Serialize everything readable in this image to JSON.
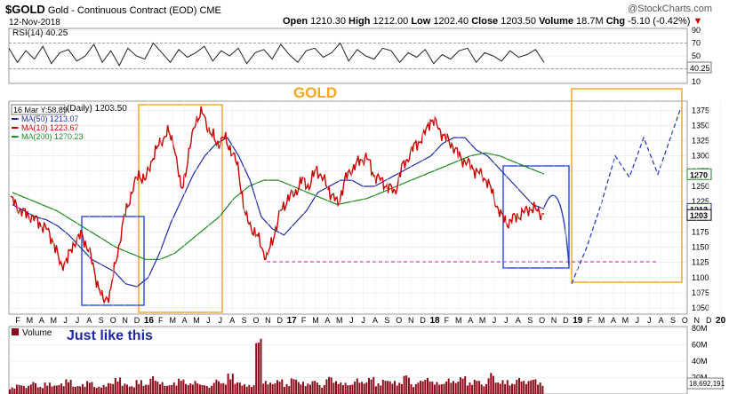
{
  "header": {
    "symbol": "$GOLD",
    "name": "Gold - Continuous Contract (EOD)",
    "exchange": "CME",
    "date": "12-Nov-2018",
    "watermark": "@StockCharts.com",
    "ohlc": [
      {
        "label": "Open",
        "value": "1210.30"
      },
      {
        "label": "High",
        "value": "1212.00"
      },
      {
        "label": "Low",
        "value": "1202.40"
      },
      {
        "label": "Close",
        "value": "1203.50"
      },
      {
        "label": "Volume",
        "value": "18.7M"
      },
      {
        "label": "Chg",
        "value": "-5.10 (-0.42%)"
      }
    ],
    "chg_arrow": "▼"
  },
  "annotations": {
    "gold_label": "GOLD",
    "just_like_this": "Just like this",
    "cursor_info": "16 Mar Y:58.89"
  },
  "colors": {
    "price": "#cc0000",
    "ma50": "#1a2aa8",
    "ma200": "#1a8a1a",
    "rsi": "#222222",
    "box_orange": "#f5a623",
    "box_blue": "#3355dd",
    "support_line": "#e040c0",
    "forecast": "#2b3fbf",
    "volume": "#8b0a1a",
    "gold_label": "#f5a623",
    "just_like_this": "#1a2aa8"
  },
  "chart_data": [
    {
      "type": "line",
      "panel": "rsi",
      "title": "RSI(14)",
      "current_value": "40.25",
      "ylim": [
        10,
        90
      ],
      "yticks": [
        "90",
        "70",
        "50",
        "30",
        "10"
      ],
      "reference_lines": [
        70,
        30
      ],
      "series": [
        {
          "values": [
            62,
            40,
            58,
            45,
            65,
            38,
            55,
            60,
            42,
            50,
            68,
            40,
            58,
            35,
            62,
            50,
            45,
            70,
            55,
            40,
            60,
            48,
            55,
            65,
            42,
            58,
            50,
            62,
            38,
            55,
            60,
            45,
            68,
            52,
            40,
            58,
            62,
            48,
            55,
            70,
            42,
            60,
            50,
            45,
            62,
            58,
            40,
            55,
            48,
            60,
            38,
            52,
            45,
            58,
            62,
            40,
            55,
            50,
            42,
            58,
            48,
            52,
            60,
            40
          ]
        }
      ]
    },
    {
      "type": "line",
      "panel": "price",
      "title": "GOLD",
      "legend": [
        {
          "name": "(Daily) 1203.50",
          "color": "#cc0000"
        },
        {
          "name": "MA(50) 1213.07",
          "color": "#1a2aa8"
        },
        {
          "name": "MA(10) 1223.67",
          "color": "#cc0000"
        },
        {
          "name": "MA(200) 1270.23",
          "color": "#1a8a1a"
        }
      ],
      "ylim": [
        1040,
        1390
      ],
      "yticks": [
        1050,
        1075,
        1100,
        1125,
        1150,
        1175,
        1200,
        1225,
        1250,
        1275,
        1300,
        1325,
        1350,
        1375
      ],
      "price_tags": [
        "1270",
        "1213",
        "1203"
      ],
      "x_ticks": [
        "F",
        "M",
        "A",
        "M",
        "J",
        "J",
        "A",
        "S",
        "O",
        "N",
        "D",
        "16",
        "F",
        "M",
        "A",
        "M",
        "J",
        "J",
        "A",
        "S",
        "O",
        "N",
        "D",
        "17",
        "F",
        "M",
        "A",
        "M",
        "J",
        "J",
        "A",
        "S",
        "O",
        "N",
        "D",
        "18",
        "F",
        "M",
        "A",
        "M",
        "J",
        "J",
        "A",
        "S",
        "O",
        "N",
        "D",
        "19",
        "F",
        "M",
        "A",
        "M",
        "J",
        "J",
        "A",
        "S",
        "O",
        "N",
        "D",
        "20"
      ],
      "x_labels": [
        "2015-02",
        "2015-03",
        "2015-04",
        "2015-05",
        "2015-06",
        "2015-07",
        "2015-08",
        "2015-09",
        "2015-10",
        "2015-11",
        "2015-12",
        "2016-01",
        "2016-02",
        "2016-03",
        "2016-04",
        "2016-05",
        "2016-06",
        "2016-07",
        "2016-08",
        "2016-09",
        "2016-10",
        "2016-11",
        "2016-12",
        "2017-01",
        "2017-02",
        "2017-03",
        "2017-04",
        "2017-05",
        "2017-06",
        "2017-07",
        "2017-08",
        "2017-09",
        "2017-10",
        "2017-11",
        "2017-12",
        "2018-01",
        "2018-02",
        "2018-03",
        "2018-04",
        "2018-05",
        "2018-06",
        "2018-07",
        "2018-08",
        "2018-09",
        "2018-10",
        "2018-11"
      ],
      "series": [
        {
          "name": "Price",
          "values": [
            1230,
            1215,
            1205,
            1200,
            1190,
            1180,
            1160,
            1120,
            1130,
            1160,
            1170,
            1145,
            1100,
            1060,
            1075,
            1140,
            1200,
            1240,
            1270,
            1260,
            1300,
            1320,
            1340,
            1320,
            1240,
            1300,
            1360,
            1370,
            1340,
            1320,
            1330,
            1310,
            1280,
            1200,
            1180,
            1160,
            1130,
            1170,
            1210,
            1230,
            1240,
            1260,
            1250,
            1280,
            1260,
            1240,
            1220,
            1260,
            1280,
            1290,
            1300,
            1270,
            1260,
            1250,
            1240,
            1280,
            1300,
            1320,
            1330,
            1360,
            1350,
            1330,
            1320,
            1300,
            1290,
            1280,
            1270,
            1260,
            1230,
            1200,
            1190,
            1200,
            1205,
            1215,
            1210,
            1203.5
          ]
        },
        {
          "name": "MA(50)",
          "values": [
            1220,
            1210,
            1200,
            1195,
            1185,
            1170,
            1150,
            1130,
            1120,
            1110,
            1090,
            1085,
            1100,
            1140,
            1190,
            1230,
            1270,
            1300,
            1320,
            1330,
            1300,
            1260,
            1200,
            1180,
            1170,
            1190,
            1210,
            1240,
            1250,
            1260,
            1260,
            1250,
            1250,
            1260,
            1270,
            1280,
            1290,
            1300,
            1320,
            1330,
            1330,
            1310,
            1300,
            1280,
            1260,
            1240,
            1220,
            1213
          ]
        },
        {
          "name": "MA(200)",
          "values": [
            1240,
            1230,
            1220,
            1210,
            1195,
            1180,
            1165,
            1150,
            1140,
            1130,
            1130,
            1140,
            1160,
            1180,
            1200,
            1230,
            1250,
            1260,
            1260,
            1250,
            1240,
            1230,
            1220,
            1225,
            1230,
            1240,
            1250,
            1260,
            1270,
            1280,
            1290,
            1300,
            1305,
            1300,
            1290,
            1280,
            1270.23
          ]
        }
      ]
    },
    {
      "type": "line",
      "panel": "forecast",
      "title": "",
      "series": [
        {
          "name": "Projected path",
          "values": [
            1215,
            1230,
            1200,
            1120,
            1090,
            1150,
            1220,
            1300,
            1265,
            1330,
            1270,
            1380
          ]
        }
      ]
    },
    {
      "type": "bar",
      "panel": "volume",
      "title": "Volume",
      "current_value": "18,692,191",
      "ylim": [
        0,
        80
      ],
      "yticks": [
        "80M",
        "60M",
        "40M",
        "20M"
      ],
      "values": [
        8,
        12,
        10,
        15,
        9,
        14,
        11,
        13,
        18,
        10,
        12,
        16,
        9,
        11,
        14,
        20,
        13,
        10,
        17,
        12,
        22,
        15,
        11,
        14,
        19,
        13,
        16,
        12,
        10,
        18,
        14,
        25,
        15,
        12,
        11,
        70,
        16,
        14,
        18,
        12,
        20,
        15,
        13,
        17,
        11,
        22,
        16,
        14,
        12,
        19,
        15,
        21,
        13,
        18,
        16,
        14,
        24,
        12,
        17,
        20,
        15,
        13,
        19,
        16,
        22,
        14,
        18,
        12,
        26,
        15,
        17,
        13,
        20,
        16,
        19,
        14
      ]
    }
  ]
}
